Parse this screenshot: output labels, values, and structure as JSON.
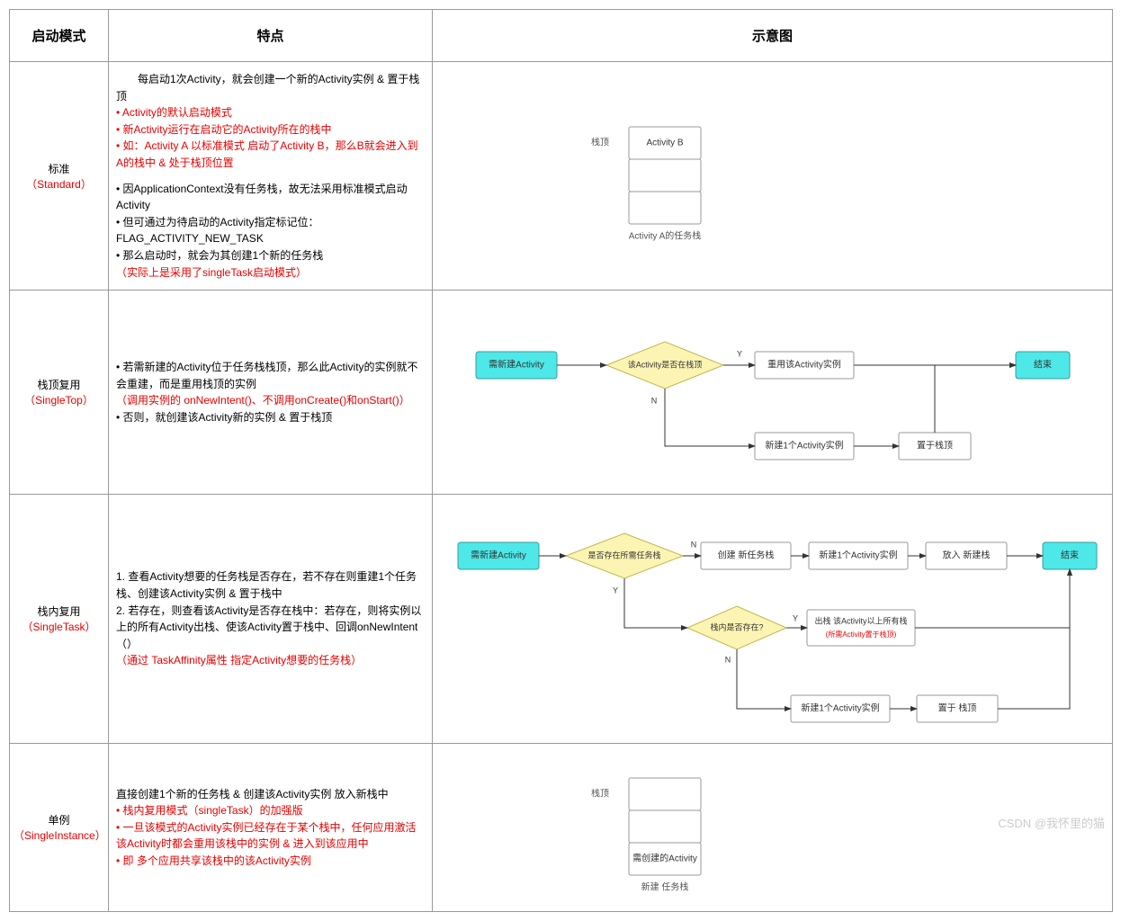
{
  "headers": {
    "col1": "启动模式",
    "col2": "特点",
    "col3": "示意图"
  },
  "colors": {
    "border": "#999999",
    "red_text": "#e60000",
    "black_text": "#000000",
    "node_start_fill": "#4ee8e8",
    "node_start_stroke": "#3a9b9b",
    "node_decision_fill": "#fbf4b3",
    "node_decision_stroke": "#bfb94e",
    "node_box_fill": "#ffffff",
    "node_box_stroke": "#999999",
    "edge_stroke": "#333333",
    "fontsize_header": 15,
    "fontsize_body": 12,
    "fontsize_svg": 10,
    "fontsize_svg_small": 8
  },
  "rows": {
    "standard": {
      "name_cn": "标准",
      "name_en": "（Standard）",
      "features": [
        {
          "t": "　　每启动1次Activity，就会创建一个新的Activity实例 & 置于栈顶",
          "c": "blk"
        },
        {
          "t": "• Activity的默认启动模式",
          "c": "red"
        },
        {
          "t": "• 新Activity运行在启动它的Activity所在的栈中",
          "c": "red"
        },
        {
          "t": "• 如：Activity A 以标准模式 启动了Activity B，那么B就会进入到A的栈中 & 处于栈顶位置",
          "c": "red"
        },
        {
          "t": "",
          "c": "blk"
        },
        {
          "t": "• 因ApplicationContext没有任务栈，故无法采用标准模式启动Activity",
          "c": "blk"
        },
        {
          "t": "• 但可通过为待启动的Activity指定标记位：FLAG_ACTIVITY_NEW_TASK",
          "c": "blk"
        },
        {
          "t": "• 那么启动时，就会为其创建1个新的任务栈",
          "c": "blk"
        },
        {
          "t": "（实际上是采用了singleTask启动模式）",
          "c": "red"
        }
      ],
      "stack": {
        "top_label": "栈顶",
        "cells": [
          "Activity B",
          "",
          ""
        ],
        "caption": "Activity A的任务栈"
      }
    },
    "singleTop": {
      "name_cn": "栈顶复用",
      "name_en": "（SingleTop）",
      "features": [
        {
          "t": "• 若需新建的Activity位于任务栈栈顶，那么此Activity的实例就不会重建，而是重用栈顶的实例",
          "c": "blk"
        },
        {
          "t": "（调用实例的 onNewIntent()、不调用onCreate()和onStart()）",
          "c": "red"
        },
        {
          "t": "• 否则，就创建该Activity新的实例 & 置于栈顶",
          "c": "blk"
        }
      ],
      "flow": {
        "start": "需新建Activity",
        "decision": "该Activity是否在栈顶",
        "y_label": "Y",
        "n_label": "N",
        "reuse": "重用该Activity实例",
        "end": "结束",
        "create": "新建1个Activity实例",
        "push": "置于栈顶"
      }
    },
    "singleTask": {
      "name_cn": "栈内复用",
      "name_en": "（SingleTask）",
      "features": [
        {
          "t": "1. 查看Activity想要的任务栈是否存在，若不存在则重建1个任务栈、创建该Activity实例 & 置于栈中",
          "c": "blk"
        },
        {
          "t": "2. 若存在，则查看该Activity是否存在栈中：若存在，则将实例以上的所有Activity出栈、使该Activity置于栈中、回调onNewIntent（）",
          "c": "blk"
        },
        {
          "t": "（通过 TaskAffinity属性 指定Activity想要的任务栈）",
          "c": "red"
        }
      ],
      "flow": {
        "start": "需新建Activity",
        "d1": "是否存在所需任务栈",
        "n1": "创建 新任务栈",
        "n2": "新建1个Activity实例",
        "n3": "放入 新建栈",
        "end": "结束",
        "d2": "栈内是否存在?",
        "y_label": "Y",
        "n_label": "N",
        "pop_line1": "出栈 该Activity以上所有栈",
        "pop_line2": "(所需Activity置于栈顶)",
        "cr2": "新建1个Activity实例",
        "push2": "置于 栈顶"
      }
    },
    "singleInstance": {
      "name_cn": "单例",
      "name_en": "（SingleInstance）",
      "features": [
        {
          "t": "直接创建1个新的任务栈 & 创建该Activity实例 放入新栈中",
          "c": "blk"
        },
        {
          "t": "• 栈内复用模式（singleTask）的加强版",
          "c": "red"
        },
        {
          "t": "• 一旦该模式的Activity实例已经存在于某个栈中，任何应用激活该Activity时都会重用该栈中的实例 & 进入到该应用中",
          "c": "red"
        },
        {
          "t": "• 即 多个应用共享该栈中的该Activity实例",
          "c": "red"
        }
      ],
      "stack": {
        "top_label": "栈顶",
        "cells": [
          "",
          "",
          "需创建的Activity"
        ],
        "caption": "新建 任务栈"
      }
    }
  },
  "watermark": "CSDN @我怀里的猫"
}
